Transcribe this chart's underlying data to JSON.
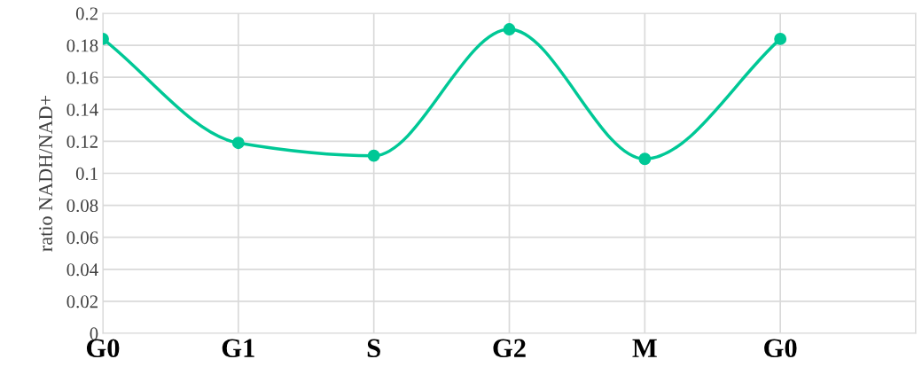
{
  "chart_data": {
    "type": "line",
    "ylabel": "ratio NADH/NAD+",
    "categories": [
      "G0",
      "G1",
      "S",
      "G2",
      "M",
      "G0",
      null
    ],
    "series": [
      {
        "color": "#00c896",
        "values": [
          0.184,
          0.119,
          0.111,
          0.19,
          0.109,
          0.184,
          null
        ]
      }
    ],
    "ylim": [
      0,
      0.2
    ],
    "yticks": [
      {
        "value": 0,
        "label": "0"
      },
      {
        "value": 0.02,
        "label": "0.02"
      },
      {
        "value": 0.04,
        "label": "0.04"
      },
      {
        "value": 0.06,
        "label": "0.06"
      },
      {
        "value": 0.08,
        "label": "0.08"
      },
      {
        "value": 0.1,
        "label": "0.1"
      },
      {
        "value": 0.12,
        "label": "0.12"
      },
      {
        "value": 0.14,
        "label": "0.14"
      },
      {
        "value": 0.16,
        "label": "0.16"
      },
      {
        "value": 0.18,
        "label": "0.18"
      },
      {
        "value": 0.2,
        "label": "0.2"
      }
    ],
    "grid": true,
    "marker": "circle"
  }
}
